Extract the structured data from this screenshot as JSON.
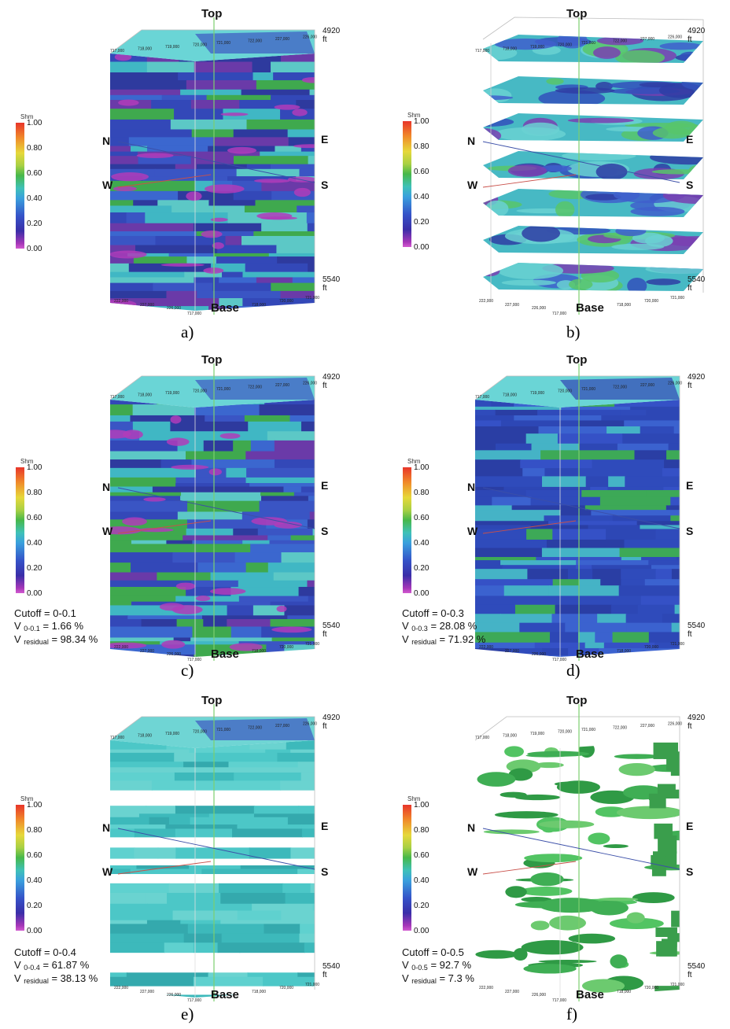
{
  "colorbar": {
    "title": "Shm",
    "ticks": [
      "1.00",
      "0.80",
      "0.60",
      "0.40",
      "0.20",
      "0.00"
    ]
  },
  "directions": {
    "north": "N",
    "south": "S",
    "east": "E",
    "west": "W"
  },
  "depth": {
    "top_value": "4920",
    "base_value": "5540",
    "unit": "ft"
  },
  "labels": {
    "top": "Top",
    "base": "Base"
  },
  "coord_ticks_top": [
    "717,000",
    "718,000",
    "719,000",
    "720,000",
    "721,000",
    "722,000",
    "227,000",
    "226,000"
  ],
  "coord_ticks_bottom": [
    "222,000",
    "227,000",
    "226,000",
    "717,000",
    "718,000",
    "720,000",
    "721,000"
  ],
  "panels": [
    {
      "id": "a",
      "caption": "a)",
      "view": "block",
      "stats": null
    },
    {
      "id": "b",
      "caption": "b)",
      "view": "slices",
      "stats": null
    },
    {
      "id": "c",
      "caption": "c)",
      "view": "block",
      "stats": {
        "cutoff": "Cutoff = 0-0.1",
        "v_range_prefix": "V",
        "v_range_sub": "0-0.1",
        "v_range_value": "= 1.66 %",
        "v_res_prefix": "V",
        "v_res_sub": "residual",
        "v_res_value": "= 98.34 %"
      }
    },
    {
      "id": "d",
      "caption": "d)",
      "view": "block-blue",
      "stats": {
        "cutoff": "Cutoff = 0-0.3",
        "v_range_prefix": "V",
        "v_range_sub": "0-0.3",
        "v_range_value": "= 28.08 %",
        "v_res_prefix": "V",
        "v_res_sub": "residual",
        "v_res_value": "= 71.92 %"
      }
    },
    {
      "id": "e",
      "caption": "e)",
      "view": "block-cyan",
      "stats": {
        "cutoff": "Cutoff = 0-0.4",
        "v_range_prefix": "V",
        "v_range_sub": "0-0.4",
        "v_range_value": "= 61.87 %",
        "v_res_prefix": "V",
        "v_res_sub": "residual",
        "v_res_value": "= 38.13 %"
      }
    },
    {
      "id": "f",
      "caption": "f)",
      "view": "block-green",
      "stats": {
        "cutoff": "Cutoff = 0-0.5",
        "v_range_prefix": "V",
        "v_range_sub": "0-0.5",
        "v_range_value": "= 92.7 %",
        "v_res_prefix": "V",
        "v_res_sub": "residual",
        "v_res_value": "= 7.3 %"
      }
    }
  ]
}
